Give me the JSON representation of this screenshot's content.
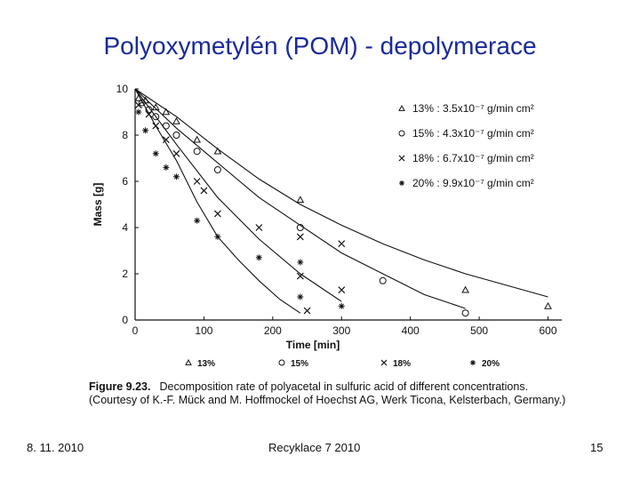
{
  "slide": {
    "title": "Polyoxymetylén (POM) - depolymerace",
    "footer_date": "8. 11. 2010",
    "footer_center": "Recyklace 7 2010",
    "page_number": "15"
  },
  "caption": {
    "figure_label": "Figure 9.23.",
    "text": "Decomposition rate of polyacetal in sulfuric acid of different concentrations. (Courtesy of K.-F. Mück and M. Hoffmockel of Hoechst AG, Werk Ticona, Kelsterbach, Germany.)"
  },
  "chart_data": {
    "type": "scatter",
    "xlabel": "Time [min]",
    "ylabel": "Mass [g]",
    "xlim": [
      0,
      620
    ],
    "ylim": [
      0,
      10
    ],
    "x_ticks": [
      "0",
      "100",
      "200",
      "300",
      "400",
      "500",
      "600"
    ],
    "y_ticks": [
      "0",
      "2",
      "4",
      "6",
      "8",
      "10"
    ],
    "legend_position": "top-right",
    "series": [
      {
        "name": "13% : 3.5x10⁻⁷ g/min cm²",
        "short": "13%",
        "marker": "triangle",
        "points": [
          [
            5,
            9.6
          ],
          [
            15,
            9.5
          ],
          [
            30,
            9.2
          ],
          [
            45,
            9.0
          ],
          [
            60,
            8.6
          ],
          [
            90,
            7.8
          ],
          [
            120,
            7.3
          ],
          [
            240,
            5.2
          ],
          [
            480,
            1.3
          ],
          [
            600,
            0.6
          ]
        ],
        "curve": [
          [
            0,
            10
          ],
          [
            60,
            8.8
          ],
          [
            120,
            7.4
          ],
          [
            180,
            6.1
          ],
          [
            240,
            5.0
          ],
          [
            300,
            4.1
          ],
          [
            360,
            3.3
          ],
          [
            420,
            2.6
          ],
          [
            480,
            2.0
          ],
          [
            540,
            1.5
          ],
          [
            600,
            1.0
          ]
        ]
      },
      {
        "name": "15% : 4.3x10⁻⁷ g/min cm²",
        "short": "15%",
        "marker": "circle",
        "points": [
          [
            10,
            9.4
          ],
          [
            20,
            9.1
          ],
          [
            30,
            8.8
          ],
          [
            45,
            8.4
          ],
          [
            60,
            8.0
          ],
          [
            90,
            7.3
          ],
          [
            120,
            6.5
          ],
          [
            240,
            4.0
          ],
          [
            360,
            1.7
          ],
          [
            480,
            0.3
          ]
        ],
        "curve": [
          [
            0,
            10
          ],
          [
            60,
            8.3
          ],
          [
            120,
            6.8
          ],
          [
            180,
            5.3
          ],
          [
            240,
            4.1
          ],
          [
            300,
            2.9
          ],
          [
            360,
            2.0
          ],
          [
            420,
            1.1
          ],
          [
            480,
            0.5
          ]
        ]
      },
      {
        "name": "18% : 6.7x10⁻⁷ g/min cm²",
        "short": "18%",
        "marker": "x",
        "points": [
          [
            5,
            9.3
          ],
          [
            20,
            8.9
          ],
          [
            30,
            8.4
          ],
          [
            45,
            7.8
          ],
          [
            60,
            7.2
          ],
          [
            90,
            6.0
          ],
          [
            100,
            5.6
          ],
          [
            120,
            4.6
          ],
          [
            180,
            4.0
          ],
          [
            240,
            3.6
          ],
          [
            300,
            3.3
          ],
          [
            240,
            1.9
          ],
          [
            300,
            1.3
          ],
          [
            250,
            0.4
          ]
        ],
        "curve": [
          [
            0,
            10
          ],
          [
            60,
            7.6
          ],
          [
            120,
            5.3
          ],
          [
            180,
            3.5
          ],
          [
            240,
            2.0
          ],
          [
            300,
            0.8
          ]
        ]
      },
      {
        "name": "20% : 9.9x10⁻⁷ g/min cm²",
        "short": "20%",
        "marker": "star",
        "points": [
          [
            5,
            9.0
          ],
          [
            15,
            8.2
          ],
          [
            30,
            7.2
          ],
          [
            45,
            6.6
          ],
          [
            60,
            6.2
          ],
          [
            90,
            4.3
          ],
          [
            120,
            3.6
          ],
          [
            180,
            2.7
          ],
          [
            240,
            2.5
          ],
          [
            240,
            1.0
          ],
          [
            300,
            0.6
          ]
        ],
        "curve": [
          [
            0,
            10
          ],
          [
            30,
            8.4
          ],
          [
            60,
            6.9
          ],
          [
            90,
            5.1
          ],
          [
            120,
            3.6
          ],
          [
            150,
            2.6
          ],
          [
            180,
            1.7
          ],
          [
            210,
            0.9
          ],
          [
            240,
            0.3
          ]
        ]
      }
    ]
  }
}
